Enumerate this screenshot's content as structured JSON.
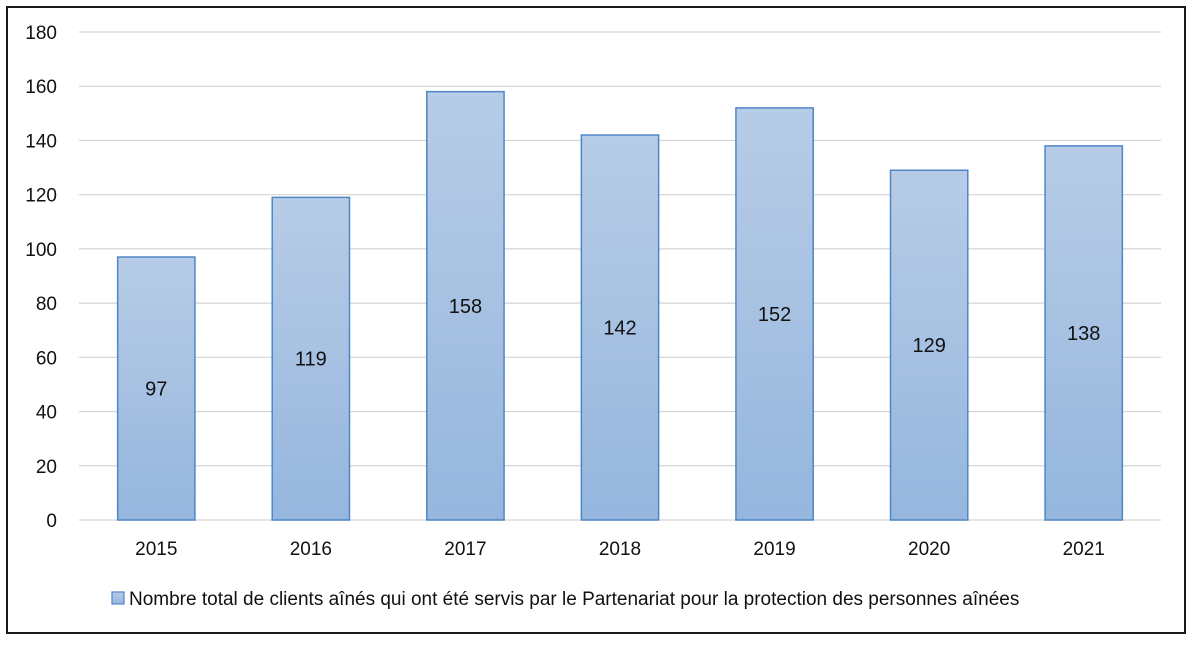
{
  "chart_data": {
    "type": "bar",
    "categories": [
      "2015",
      "2016",
      "2017",
      "2018",
      "2019",
      "2020",
      "2021"
    ],
    "series": [
      {
        "name": "Nombre total de clients aînés qui ont été servis par le Partenariat pour la protection des personnes aînées",
        "values": [
          97,
          119,
          158,
          142,
          152,
          129,
          138
        ]
      }
    ],
    "data_labels": [
      "97",
      "119",
      "158",
      "142",
      "152",
      "129",
      "138"
    ],
    "y_ticks": [
      "0",
      "20",
      "40",
      "60",
      "80",
      "100",
      "120",
      "140",
      "160",
      "180"
    ],
    "ylim": [
      0,
      180
    ],
    "grid": true,
    "legend_position": "bottom",
    "title": "",
    "xlabel": "",
    "ylabel": "",
    "colors": {
      "bar_top": "#b7cce6",
      "bar_bottom": "#95b6de",
      "bar_border": "#4f86c6",
      "grid": "#d4d4d4"
    }
  }
}
